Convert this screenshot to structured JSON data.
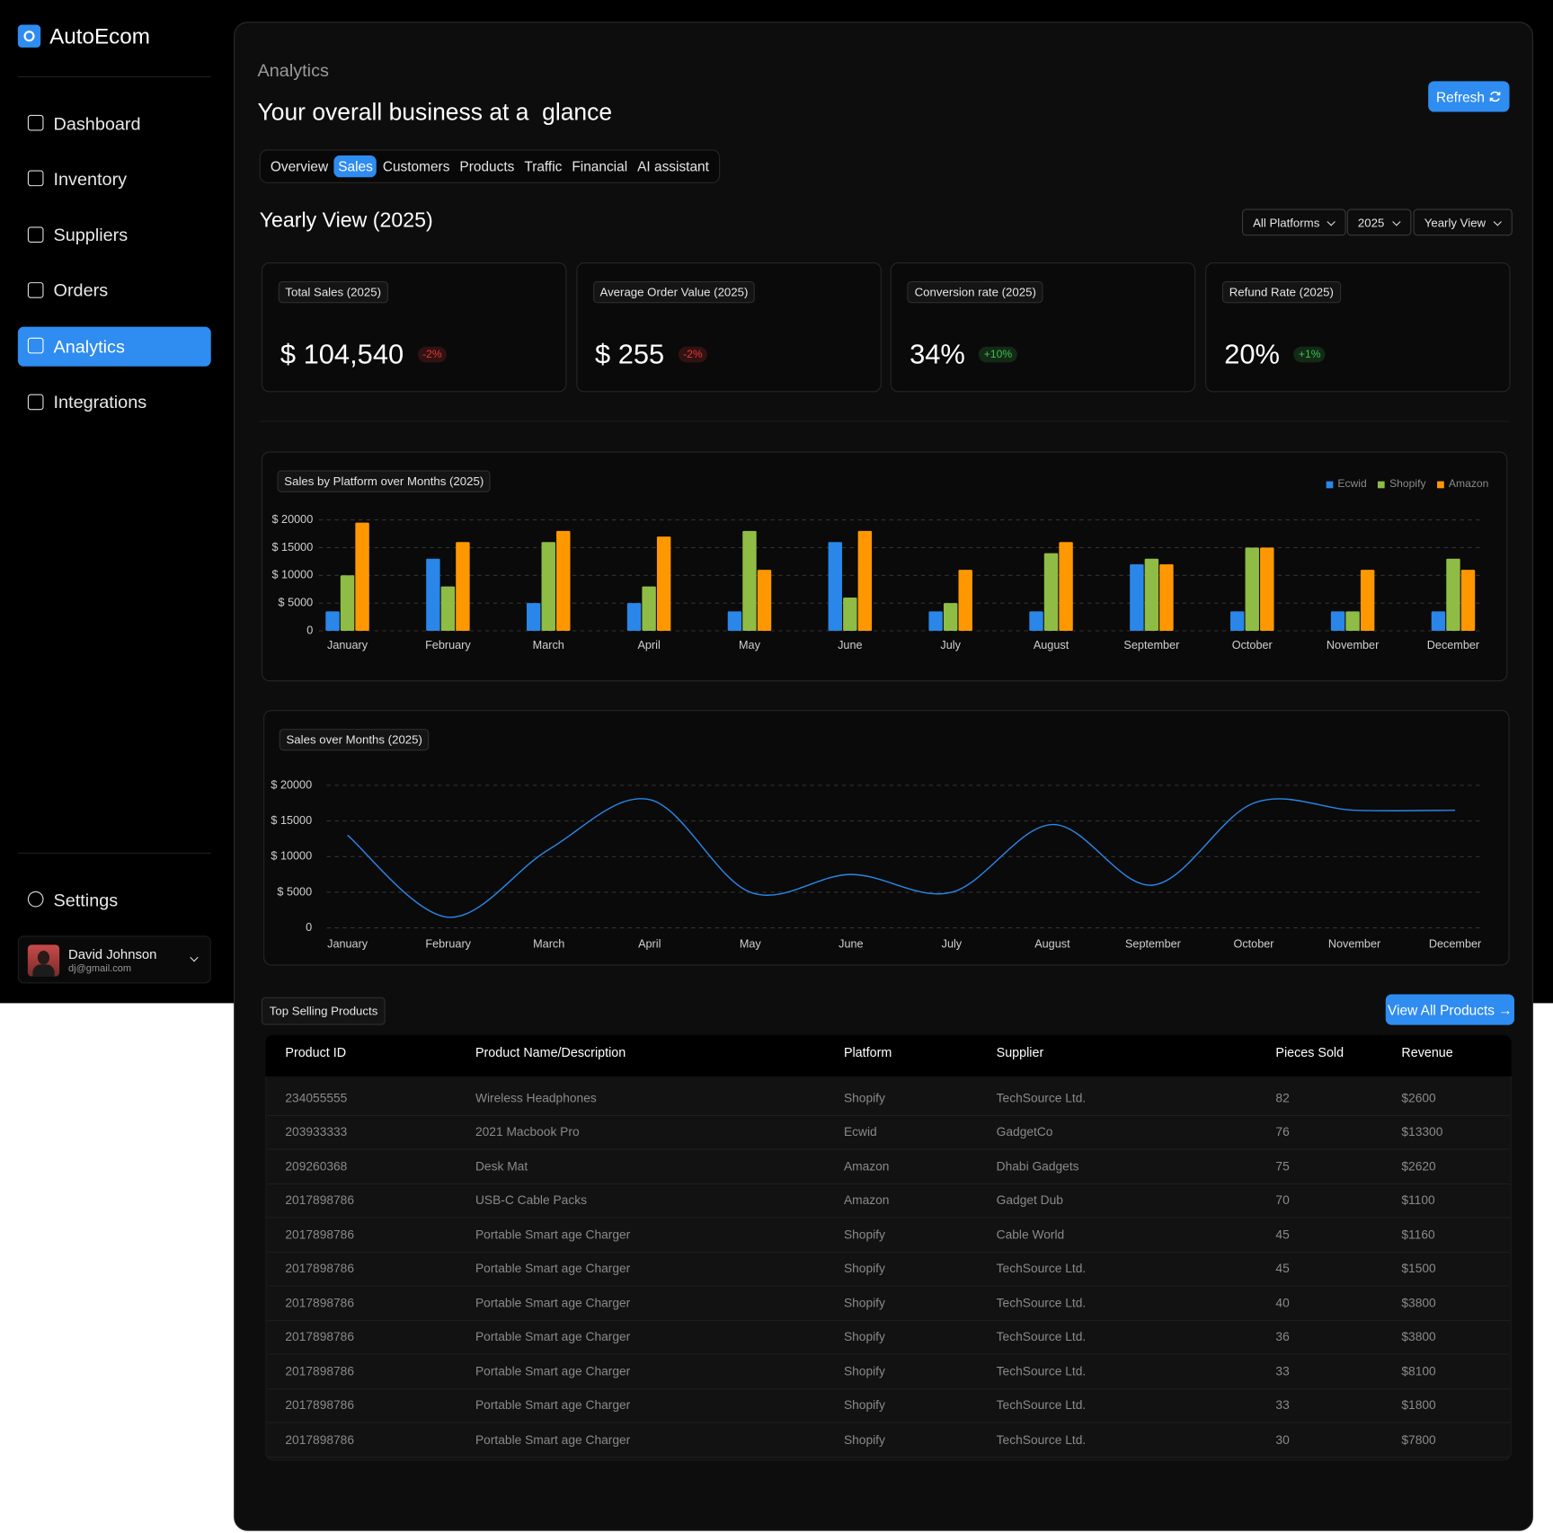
{
  "sidebar": {
    "brand": "AutoEcom",
    "nav": [
      {
        "label": "Dashboard"
      },
      {
        "label": "Inventory"
      },
      {
        "label": "Suppliers"
      },
      {
        "label": "Orders"
      },
      {
        "label": "Analytics",
        "active": true
      },
      {
        "label": "Integrations"
      }
    ],
    "settings": "Settings",
    "user": {
      "name": "David Johnson",
      "email": "dj@gmail.com"
    }
  },
  "header": {
    "section": "Analytics",
    "title": "Your overall business at a  glance",
    "refresh": "Refresh"
  },
  "tabs": [
    {
      "label": "Overview"
    },
    {
      "label": "Sales",
      "active": true
    },
    {
      "label": "Customers"
    },
    {
      "label": "Products"
    },
    {
      "label": "Traffic"
    },
    {
      "label": "Financial"
    },
    {
      "label": "AI assistant"
    }
  ],
  "view": {
    "title": "Yearly View (2025)",
    "filters": [
      "All Platforms",
      "2025",
      "Yearly View"
    ]
  },
  "kpis": [
    {
      "label": "Total Sales (2025)",
      "value": "$ 104,540",
      "change": "-2%",
      "badge_color": "#e53935"
    },
    {
      "label": "Average Order Value (2025)",
      "value": "$ 255",
      "change": "-2%",
      "badge_color": "#e53935"
    },
    {
      "label": "Conversion rate (2025)",
      "value": "34%",
      "change": "+10%",
      "badge_color": "#3fbf4f"
    },
    {
      "label": "Refund Rate (2025)",
      "value": "20%",
      "change": "+1%",
      "badge_color": "#3fbf4f"
    }
  ],
  "charts": [
    {
      "type": "bar",
      "title": "Sales by Platform over Months (2025)",
      "categories": [
        "January",
        "February",
        "March",
        "April",
        "May",
        "June",
        "July",
        "August",
        "September",
        "October",
        "November",
        "December"
      ],
      "series": [
        {
          "name": "Ecwid",
          "color": "#2a86e8",
          "values": [
            3500,
            13000,
            5000,
            5000,
            3500,
            16000,
            3500,
            3500,
            12000,
            3500,
            3500,
            3500
          ]
        },
        {
          "name": "Shopify",
          "color": "#8fbc45",
          "values": [
            10000,
            8000,
            16000,
            8000,
            18000,
            6000,
            5000,
            14000,
            13000,
            15000,
            3500,
            13000
          ]
        },
        {
          "name": "Amazon",
          "color": "#ff9800",
          "values": [
            19500,
            16000,
            18000,
            17000,
            11000,
            18000,
            11000,
            16000,
            12000,
            15000,
            11000,
            11000
          ]
        }
      ],
      "ylim": [
        0,
        20000
      ],
      "yticks": [
        0,
        {
          "value": 5000,
          "label": "$  5000"
        },
        {
          "value": 10000,
          "label": "$ 10000"
        },
        {
          "value": 15000,
          "label": "$ 15000"
        },
        {
          "value": 20000,
          "label": "$ 20000"
        }
      ],
      "grid": true,
      "legend": "top-right"
    },
    {
      "type": "line",
      "title": "Sales over Months (2025)",
      "categories": [
        "January",
        "February",
        "March",
        "April",
        "May",
        "June",
        "July",
        "August",
        "September",
        "October",
        "November",
        "December"
      ],
      "color": "#2a86e8",
      "values": [
        13000,
        1500,
        11000,
        18000,
        5000,
        7500,
        5000,
        14500,
        6000,
        17500,
        16500,
        16500
      ],
      "ylim": [
        0,
        20000
      ],
      "yticks": [
        0,
        {
          "value": 5000,
          "label": "$  5000"
        },
        {
          "value": 10000,
          "label": "$ 10000"
        },
        {
          "value": 15000,
          "label": "$ 15000"
        },
        {
          "value": 20000,
          "label": "$ 20000"
        }
      ],
      "grid": true
    }
  ],
  "table": {
    "title": "Top Selling Products",
    "button": "View All Products →",
    "columns": [
      "Product ID",
      "Product  Name/Description",
      "Platform",
      "Supplier",
      "Pieces Sold",
      "Revenue"
    ],
    "rows": [
      [
        "234055555",
        "Wireless Headphones",
        "Shopify",
        "TechSource Ltd.",
        82,
        "$2600"
      ],
      [
        "203933333",
        "2021 Macbook Pro",
        "Ecwid",
        "GadgetCo",
        76,
        "$13300"
      ],
      [
        "209260368",
        "Desk Mat",
        "Amazon",
        "Dhabi Gadgets",
        75,
        "$2620"
      ],
      [
        "2017898786",
        "USB-C Cable Packs",
        "Amazon",
        "Gadget Dub",
        70,
        "$1100"
      ],
      [
        "2017898786",
        "Portable Smart age Charger",
        "Shopify",
        "Cable World",
        45,
        "$1160"
      ],
      [
        "2017898786",
        "Portable Smart age Charger",
        "Shopify",
        "TechSource Ltd.",
        45,
        "$1500"
      ],
      [
        "2017898786",
        "Portable Smart age Charger",
        "Shopify",
        "TechSource Ltd.",
        40,
        "$3800"
      ],
      [
        "2017898786",
        "Portable Smart age Charger",
        "Shopify",
        "TechSource Ltd.",
        36,
        "$3800"
      ],
      [
        "2017898786",
        "Portable Smart age Charger",
        "Shopify",
        "TechSource Ltd.",
        33,
        "$8100"
      ],
      [
        "2017898786",
        "Portable Smart age Charger",
        "Shopify",
        "TechSource Ltd.",
        33,
        "$1800"
      ],
      [
        "2017898786",
        "Portable Smart age Charger",
        "Shopify",
        "TechSource Ltd.",
        30,
        "$7800"
      ]
    ]
  }
}
